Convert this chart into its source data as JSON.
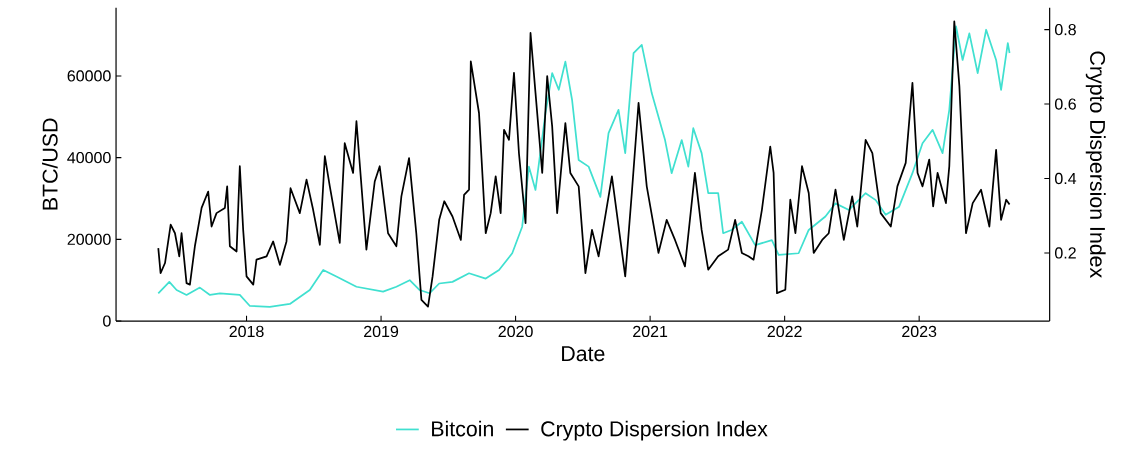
{
  "chart_data": {
    "type": "line",
    "xlabel": "Date",
    "ylabel": "BTC/USD",
    "y2label": "Crypto Dispersion Index",
    "xlim": [
      2017.03,
      2023.97
    ],
    "xticks": [
      2018,
      2019,
      2020,
      2021,
      2022,
      2023
    ],
    "ylim": [
      0,
      76700
    ],
    "yticks": [
      0,
      20000,
      40000,
      60000
    ],
    "y2lim": [
      0.017,
      0.859
    ],
    "y2ticks": [
      0.2,
      0.4,
      0.6,
      0.8
    ],
    "legend": "bottom",
    "series": [
      {
        "name": "Bitcoin",
        "color": "#40e0d0",
        "x": [
          2017.344,
          2017.426,
          2017.48,
          2017.554,
          2017.653,
          2017.728,
          2017.802,
          2017.95,
          2018.025,
          2018.173,
          2018.322,
          2018.47,
          2018.57,
          2018.668,
          2018.817,
          2019.015,
          2019.114,
          2019.213,
          2019.287,
          2019.36,
          2019.432,
          2019.531,
          2019.654,
          2019.778,
          2019.877,
          2019.975,
          2020.049,
          2020.099,
          2020.148,
          2020.222,
          2020.272,
          2020.321,
          2020.37,
          2020.42,
          2020.469,
          2020.543,
          2020.63,
          2020.691,
          2020.765,
          2020.815,
          2020.877,
          2020.938,
          2021.012,
          2021.111,
          2021.16,
          2021.235,
          2021.284,
          2021.321,
          2021.383,
          2021.432,
          2021.506,
          2021.543,
          2021.605,
          2021.682,
          2021.781,
          2021.905,
          2021.955,
          2022.104,
          2022.179,
          2022.303,
          2022.378,
          2022.478,
          2022.602,
          2022.677,
          2022.751,
          2022.851,
          2022.95,
          2023.025,
          2023.1,
          2023.174,
          2023.224,
          2023.274,
          2023.323,
          2023.373,
          2023.435,
          2023.498,
          2023.572,
          2023.609,
          2023.659,
          2023.672
        ],
        "values": [
          6800,
          9600,
          7600,
          6400,
          8200,
          6400,
          6800,
          6400,
          3700,
          3500,
          4200,
          7600,
          12500,
          10900,
          8400,
          7200,
          8400,
          10000,
          7600,
          6800,
          9200,
          9600,
          11700,
          10400,
          12500,
          16600,
          23100,
          37800,
          32100,
          50900,
          60700,
          56600,
          63500,
          54100,
          39400,
          37800,
          30400,
          46000,
          51700,
          41100,
          65600,
          67600,
          55800,
          44300,
          36200,
          44300,
          37800,
          47200,
          41100,
          31300,
          31300,
          21500,
          22300,
          24300,
          18600,
          19800,
          16200,
          16600,
          22300,
          25600,
          28800,
          27200,
          31300,
          29600,
          26000,
          28000,
          36200,
          43500,
          46800,
          41100,
          51700,
          72100,
          63900,
          70400,
          60700,
          71300,
          63900,
          56600,
          68000,
          65600
        ]
      },
      {
        "name": "Crypto Dispersion Index",
        "color": "#000000",
        "axis": "y2",
        "x": [
          2017.344,
          2017.361,
          2017.394,
          2017.436,
          2017.468,
          2017.5,
          2017.517,
          2017.554,
          2017.579,
          2017.616,
          2017.666,
          2017.715,
          2017.74,
          2017.777,
          2017.839,
          2017.856,
          2017.876,
          2017.926,
          2017.95,
          2017.975,
          2018.0,
          2018.05,
          2018.074,
          2018.149,
          2018.198,
          2018.248,
          2018.297,
          2018.327,
          2018.396,
          2018.446,
          2018.495,
          2018.545,
          2018.582,
          2018.619,
          2018.693,
          2018.73,
          2018.792,
          2018.817,
          2018.891,
          2018.953,
          2018.99,
          2019.052,
          2019.114,
          2019.151,
          2019.208,
          2019.262,
          2019.3,
          2019.349,
          2019.383,
          2019.432,
          2019.47,
          2019.531,
          2019.593,
          2019.617,
          2019.654,
          2019.667,
          2019.728,
          2019.778,
          2019.815,
          2019.852,
          2019.889,
          2019.914,
          2019.951,
          2019.988,
          2020.025,
          2020.074,
          2020.111,
          2020.148,
          2020.198,
          2020.235,
          2020.272,
          2020.309,
          2020.37,
          2020.407,
          2020.469,
          2020.519,
          2020.568,
          2020.617,
          2020.716,
          2020.815,
          2020.864,
          2020.914,
          2020.975,
          2021.062,
          2021.123,
          2021.185,
          2021.259,
          2021.333,
          2021.383,
          2021.432,
          2021.506,
          2021.58,
          2021.632,
          2021.682,
          2021.731,
          2021.769,
          2021.831,
          2021.893,
          2021.918,
          2021.943,
          2022.005,
          2022.042,
          2022.08,
          2022.129,
          2022.179,
          2022.216,
          2022.279,
          2022.328,
          2022.378,
          2022.44,
          2022.502,
          2022.54,
          2022.602,
          2022.652,
          2022.714,
          2022.789,
          2022.838,
          2022.9,
          2022.95,
          2022.988,
          2023.025,
          2023.075,
          2023.104,
          2023.137,
          2023.199,
          2023.224,
          2023.261,
          2023.299,
          2023.348,
          2023.398,
          2023.46,
          2023.522,
          2023.572,
          2023.609,
          2023.647,
          2023.672
        ],
        "values": [
          0.213,
          0.146,
          0.173,
          0.276,
          0.253,
          0.191,
          0.253,
          0.119,
          0.115,
          0.218,
          0.321,
          0.365,
          0.271,
          0.307,
          0.321,
          0.379,
          0.218,
          0.204,
          0.433,
          0.262,
          0.137,
          0.115,
          0.182,
          0.191,
          0.231,
          0.168,
          0.231,
          0.374,
          0.307,
          0.397,
          0.316,
          0.222,
          0.46,
          0.379,
          0.227,
          0.495,
          0.415,
          0.554,
          0.209,
          0.392,
          0.433,
          0.253,
          0.218,
          0.352,
          0.455,
          0.253,
          0.074,
          0.056,
          0.137,
          0.289,
          0.339,
          0.298,
          0.235,
          0.356,
          0.37,
          0.715,
          0.576,
          0.253,
          0.307,
          0.406,
          0.307,
          0.531,
          0.504,
          0.684,
          0.468,
          0.28,
          0.791,
          0.63,
          0.415,
          0.675,
          0.54,
          0.307,
          0.549,
          0.415,
          0.379,
          0.146,
          0.262,
          0.191,
          0.406,
          0.137,
          0.361,
          0.603,
          0.379,
          0.2,
          0.289,
          0.235,
          0.164,
          0.415,
          0.262,
          0.155,
          0.191,
          0.209,
          0.289,
          0.2,
          0.191,
          0.182,
          0.316,
          0.486,
          0.415,
          0.092,
          0.101,
          0.343,
          0.253,
          0.433,
          0.361,
          0.2,
          0.235,
          0.253,
          0.37,
          0.235,
          0.352,
          0.271,
          0.504,
          0.468,
          0.307,
          0.271,
          0.379,
          0.442,
          0.657,
          0.415,
          0.379,
          0.451,
          0.325,
          0.415,
          0.334,
          0.433,
          0.822,
          0.648,
          0.253,
          0.334,
          0.37,
          0.271,
          0.477,
          0.289,
          0.343,
          0.33
        ]
      }
    ]
  }
}
